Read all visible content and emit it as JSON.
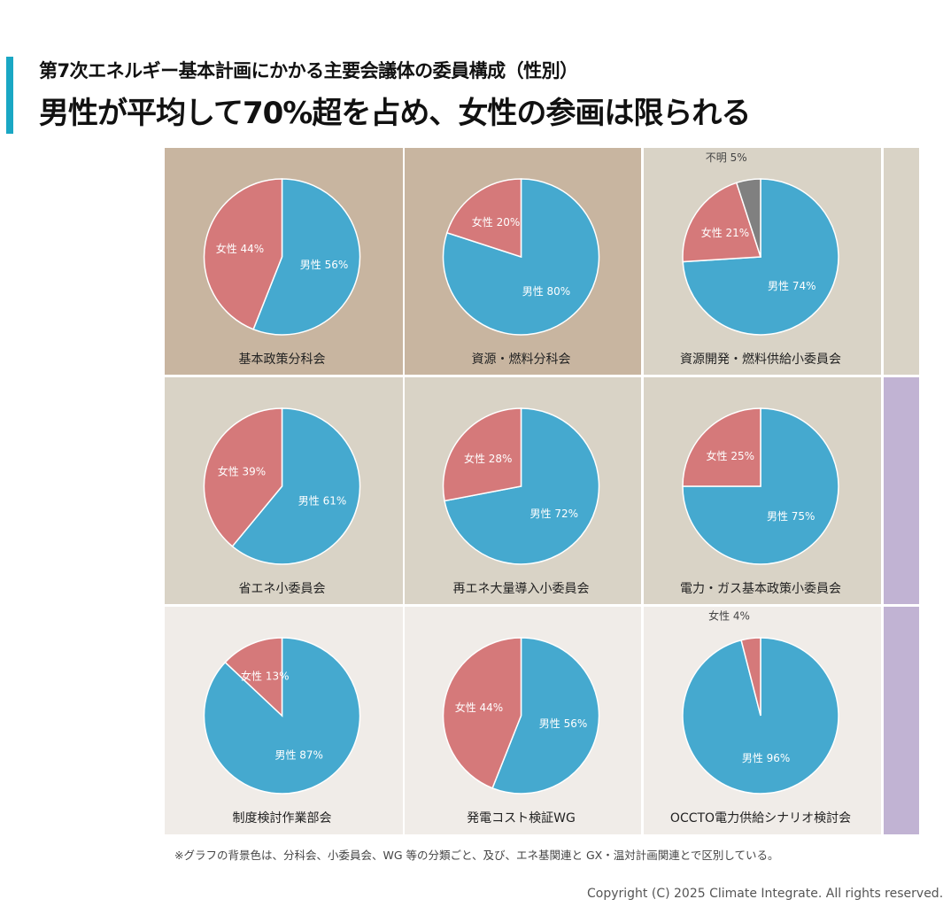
{
  "header": {
    "subtitle": "第7次エネルギー基本計画にかかる主要会議体の委員構成（性別）",
    "title": "男性が平均して70%超を占め、女性の参画は限られる"
  },
  "colors": {
    "accent": "#1aa7c4",
    "male": "#45a9cf",
    "female": "#d5797a",
    "unknown": "#808080",
    "bg_bunkakai": "#c8b5a0",
    "bg_shoiinkai": "#d9d3c6",
    "bg_wg": "#f0ece8",
    "bg_gx": "#c1b3d3"
  },
  "chart_data": [
    {
      "type": "pie",
      "title": "基本政策分科会",
      "background": "bg_bunkakai",
      "slices": [
        {
          "name": "男性",
          "value": 56
        },
        {
          "name": "女性",
          "value": 44
        }
      ]
    },
    {
      "type": "pie",
      "title": "資源・燃料分科会",
      "background": "bg_bunkakai",
      "slices": [
        {
          "name": "男性",
          "value": 80
        },
        {
          "name": "女性",
          "value": 20
        }
      ]
    },
    {
      "type": "pie",
      "title": "資源開発・燃料供給小委員会",
      "background": "bg_shoiinkai",
      "slices": [
        {
          "name": "男性",
          "value": 74
        },
        {
          "name": "女性",
          "value": 21
        },
        {
          "name": "不明",
          "value": 5
        }
      ]
    },
    {
      "type": "pie",
      "title": "省エネ小委員会",
      "background": "bg_shoiinkai",
      "slices": [
        {
          "name": "男性",
          "value": 61
        },
        {
          "name": "女性",
          "value": 39
        }
      ]
    },
    {
      "type": "pie",
      "title": "再エネ大量導入小委員会",
      "background": "bg_shoiinkai",
      "slices": [
        {
          "name": "男性",
          "value": 72
        },
        {
          "name": "女性",
          "value": 28
        }
      ]
    },
    {
      "type": "pie",
      "title": "電力・ガス基本政策小委員会",
      "background": "bg_shoiinkai",
      "slices": [
        {
          "name": "男性",
          "value": 75
        },
        {
          "name": "女性",
          "value": 25
        }
      ]
    },
    {
      "type": "pie",
      "title": "制度検討作業部会",
      "background": "bg_wg",
      "slices": [
        {
          "name": "男性",
          "value": 87
        },
        {
          "name": "女性",
          "value": 13
        }
      ]
    },
    {
      "type": "pie",
      "title": "発電コスト検証WG",
      "background": "bg_wg",
      "slices": [
        {
          "name": "男性",
          "value": 56
        },
        {
          "name": "女性",
          "value": 44
        }
      ]
    },
    {
      "type": "pie",
      "title": "OCCTO電力供給シナリオ検討会",
      "background": "bg_wg",
      "slices": [
        {
          "name": "男性",
          "value": 96
        },
        {
          "name": "女性",
          "value": 4
        }
      ]
    }
  ],
  "footer": {
    "note": "※グラフの背景色は、分科会、小委員会、WG 等の分類ごと、及び、エネ基関連と GX・温対計画関連とで区別している。",
    "copyright": "Copyright (C) 2025 Climate Integrate. All rights reserved."
  }
}
